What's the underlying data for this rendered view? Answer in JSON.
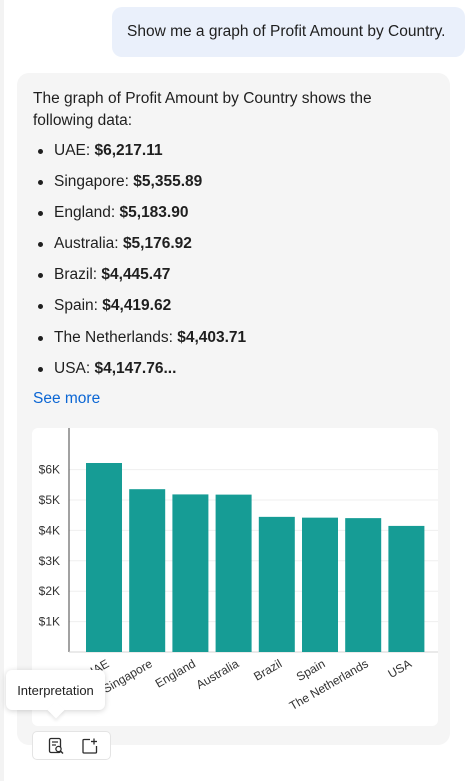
{
  "user_message": "Show me a graph of Profit Amount by Country.",
  "response": {
    "intro": "The graph of Profit Amount by Country shows the following data:",
    "items": [
      {
        "label": "UAE:",
        "value": "$6,217.11"
      },
      {
        "label": "Singapore:",
        "value": "$5,355.89"
      },
      {
        "label": "England:",
        "value": "$5,183.90"
      },
      {
        "label": "Australia:",
        "value": "$5,176.92"
      },
      {
        "label": "Brazil:",
        "value": "$4,445.47"
      },
      {
        "label": "Spain:",
        "value": "$4,419.62"
      },
      {
        "label": "The Netherlands:",
        "value": "$4,403.71"
      },
      {
        "label": "USA:",
        "value": "$4,147.76..."
      }
    ],
    "see_more": "See more"
  },
  "chart_data": {
    "type": "bar",
    "categories": [
      "UAE",
      "Singapore",
      "England",
      "Australia",
      "Brazil",
      "Spain",
      "The Netherlands",
      "USA"
    ],
    "values": [
      6217.11,
      5355.89,
      5183.9,
      5176.92,
      4445.47,
      4419.62,
      4403.71,
      4147.76
    ],
    "ylim": [
      0,
      6000
    ],
    "yticks": [
      1000,
      2000,
      3000,
      4000,
      5000,
      6000
    ],
    "ytick_labels": [
      "$1K",
      "$2K",
      "$3K",
      "$4K",
      "$5K",
      "$6K"
    ],
    "bar_color": "#169c95",
    "grid": true
  },
  "tooltip": "Interpretation",
  "toolbar": {
    "icons": [
      "interpretation-icon",
      "add-to-canvas-icon"
    ]
  }
}
